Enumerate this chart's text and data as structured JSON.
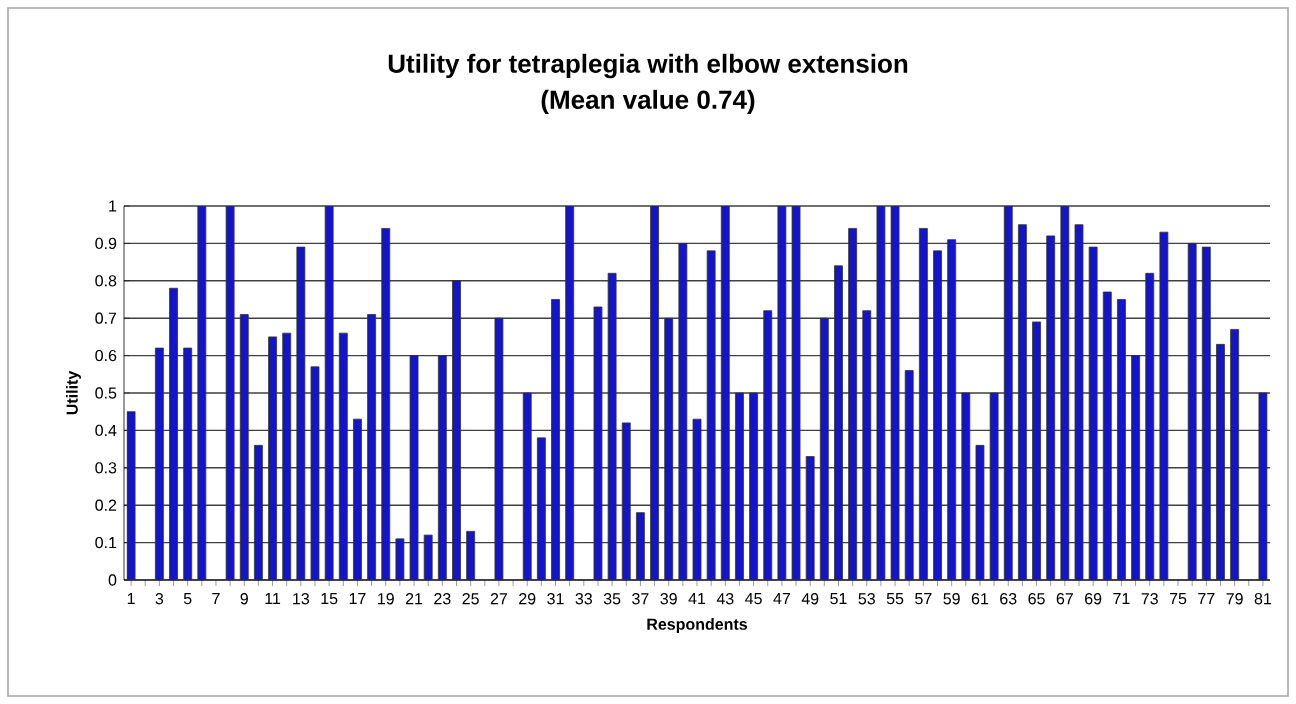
{
  "chart_data": {
    "type": "bar",
    "title": "Utility for tetraplegia with elbow extension",
    "subtitle": "(Mean value 0.74)",
    "xlabel": "Respondents",
    "ylabel": "Utility",
    "categories": [
      "1",
      null,
      "3",
      null,
      "5",
      null,
      "7",
      null,
      "9",
      null,
      "11",
      null,
      "13",
      null,
      "15",
      null,
      "17",
      null,
      "19",
      null,
      "21",
      null,
      "23",
      null,
      "25",
      null,
      "27",
      null,
      "29",
      null,
      "31",
      null,
      "33",
      null,
      "35",
      null,
      "37",
      null,
      "39",
      null,
      "41",
      null,
      "43",
      null,
      "45",
      null,
      "47",
      null,
      "49",
      null,
      "51",
      null,
      "53",
      null,
      "55",
      null,
      "57",
      null,
      "59",
      null,
      "61",
      null,
      "63",
      null,
      "65",
      null,
      "67",
      null,
      "69",
      null,
      "71",
      null,
      "73",
      null,
      "75",
      null,
      "77",
      null,
      "79",
      null,
      "81"
    ],
    "values": [
      0.45,
      null,
      0.62,
      0.78,
      0.62,
      1,
      null,
      1,
      0.71,
      0.36,
      0.65,
      0.66,
      0.89,
      0.57,
      1,
      0.66,
      0.43,
      0.71,
      0.94,
      0.11,
      0.6,
      0.12,
      0.6,
      0.8,
      0.13,
      null,
      0.7,
      null,
      0.5,
      0.38,
      0.75,
      1,
      null,
      0.73,
      0.82,
      0.42,
      0.18,
      1,
      0.7,
      0.9,
      0.43,
      0.88,
      1,
      0.5,
      0.5,
      0.72,
      1,
      1,
      0.33,
      0.7,
      0.84,
      0.94,
      0.72,
      1,
      1,
      0.56,
      0.94,
      0.88,
      0.91,
      0.5,
      0.36,
      0.5,
      1,
      0.95,
      0.69,
      0.92,
      1,
      0.95,
      0.89,
      0.77,
      0.75,
      0.6,
      0.82,
      0.93,
      null,
      0.9,
      0.89,
      0.63,
      0.67,
      null,
      0.5
    ],
    "color": "#1414c8",
    "ylim": [
      0,
      1
    ],
    "yticks": [
      0,
      0.1,
      0.2,
      0.3,
      0.4,
      0.5,
      0.6,
      0.7,
      0.8,
      0.9,
      1
    ],
    "grid": "y"
  }
}
